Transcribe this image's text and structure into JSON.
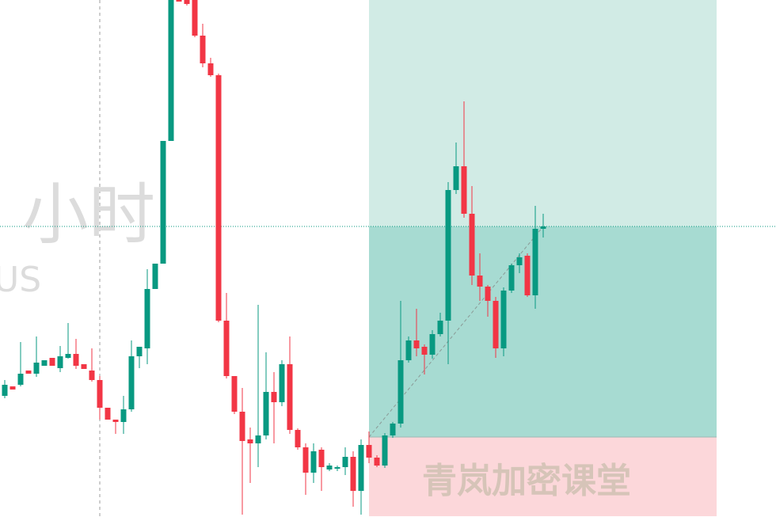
{
  "chart_data": {
    "type": "candlestick",
    "watermark": "小时",
    "watermark_sub": "US",
    "brand": "青岚加密课堂",
    "up_color": "#089981",
    "down_color": "#f23645",
    "ylim": [
      0,
      653
    ],
    "open": [
      153,
      165,
      167,
      185,
      181,
      191,
      201,
      188,
      201,
      206,
      193,
      185,
      173,
      138,
      123,
      120,
      136,
      203,
      213,
      288,
      320,
      475,
      658,
      655,
      653,
      608,
      573,
      558,
      248,
      178,
      133,
      98,
      93,
      103,
      158,
      145,
      193,
      110,
      88,
      56,
      85,
      60,
      61,
      63,
      76,
      33,
      91,
      75,
      65,
      103,
      118,
      198,
      223,
      215,
      205,
      231,
      248,
      413,
      443,
      383,
      305,
      291,
      273,
      213,
      286,
      318,
      330,
      280,
      364
    ],
    "high": [
      173,
      165,
      221,
      185,
      228,
      198,
      201,
      216,
      245,
      225,
      193,
      213,
      178,
      138,
      123,
      153,
      223,
      215,
      313,
      320,
      475,
      670,
      660,
      660,
      660,
      623,
      580,
      560,
      283,
      178,
      163,
      113,
      268,
      208,
      183,
      198,
      228,
      112,
      93,
      93,
      88,
      68,
      65,
      88,
      83,
      98,
      108,
      78,
      106,
      120,
      273,
      228,
      263,
      218,
      236,
      258,
      423,
      473,
      525,
      418,
      333,
      293,
      278,
      290,
      320,
      333,
      333,
      393,
      383
    ],
    "low": [
      150,
      161,
      165,
      181,
      177,
      191,
      191,
      183,
      200,
      187,
      187,
      171,
      123,
      123,
      105,
      105,
      133,
      188,
      193,
      288,
      320,
      475,
      651,
      646,
      606,
      568,
      556,
      246,
      175,
      130,
      3,
      43,
      63,
      98,
      93,
      140,
      105,
      85,
      28,
      43,
      33,
      58,
      58,
      53,
      13,
      3,
      68,
      63,
      62,
      100,
      113,
      195,
      203,
      180,
      200,
      228,
      193,
      408,
      378,
      293,
      273,
      253,
      201,
      203,
      283,
      308,
      278,
      263,
      353
    ],
    "close": [
      167,
      161,
      181,
      181,
      195,
      198,
      191,
      203,
      206,
      191,
      187,
      173,
      138,
      123,
      120,
      136,
      203,
      215,
      288,
      320,
      475,
      660,
      651,
      648,
      608,
      573,
      558,
      248,
      178,
      133,
      96,
      93,
      103,
      158,
      145,
      193,
      110,
      88,
      56,
      83,
      63,
      65,
      63,
      76,
      33,
      91,
      75,
      65,
      103,
      118,
      198,
      223,
      213,
      205,
      231,
      248,
      413,
      443,
      383,
      305,
      291,
      273,
      213,
      286,
      318,
      328,
      280,
      364,
      367
    ],
    "long_position": {
      "target": 653,
      "current": 367,
      "entry": 101,
      "stop": 1,
      "entry_index": 46
    }
  }
}
